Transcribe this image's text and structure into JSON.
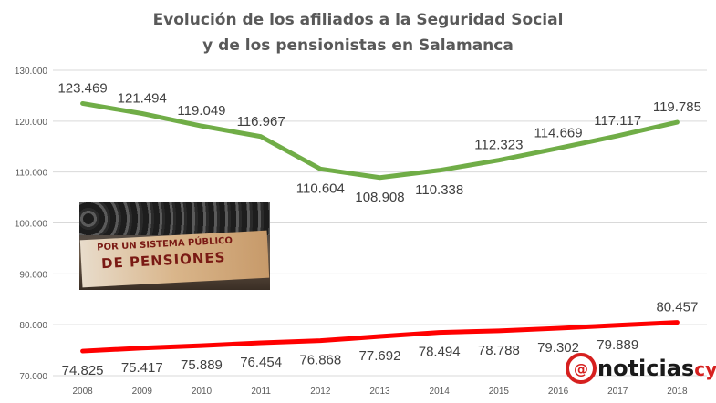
{
  "chart_data": {
    "type": "line",
    "title": "Evolución de los afiliados a la Seguridad Social",
    "subtitle": "y de los pensionistas en Salamanca",
    "x": [
      "2008",
      "2009",
      "2010",
      "2011",
      "2012",
      "2013",
      "2014",
      "2015",
      "2016",
      "2017",
      "2018"
    ],
    "ylim": [
      70000,
      130000
    ],
    "yticks": [
      70000,
      80000,
      90000,
      100000,
      110000,
      120000,
      130000
    ],
    "ytick_labels": [
      "70.000",
      "80.000",
      "90.000",
      "100.000",
      "110.000",
      "120.000",
      "130.000"
    ],
    "grid": true,
    "series": [
      {
        "color": "#70ad47",
        "values": [
          123469,
          121494,
          119049,
          116967,
          110604,
          108908,
          110338,
          112323,
          114669,
          117117,
          119785
        ],
        "labels": [
          "123.469",
          "121.494",
          "119.049",
          "116.967",
          "110.604",
          "108.908",
          "110.338",
          "112.323",
          "114.669",
          "117.117",
          "119.785"
        ]
      },
      {
        "color": "#ff0000",
        "values": [
          74825,
          75417,
          75889,
          76454,
          76868,
          77692,
          78494,
          78788,
          79302,
          79889,
          80457
        ],
        "labels": [
          "74.825",
          "75.417",
          "75.889",
          "76.454",
          "76.868",
          "77.692",
          "78.494",
          "78.788",
          "79.302",
          "79.889",
          "80.457"
        ]
      }
    ]
  },
  "photo": {
    "banner_line1": "POR UN SISTEMA PÚBLICO",
    "banner_line2": "DE PENSIONES"
  },
  "logo": {
    "mark": "@",
    "text": "noticias",
    "suffix": "cyl"
  }
}
